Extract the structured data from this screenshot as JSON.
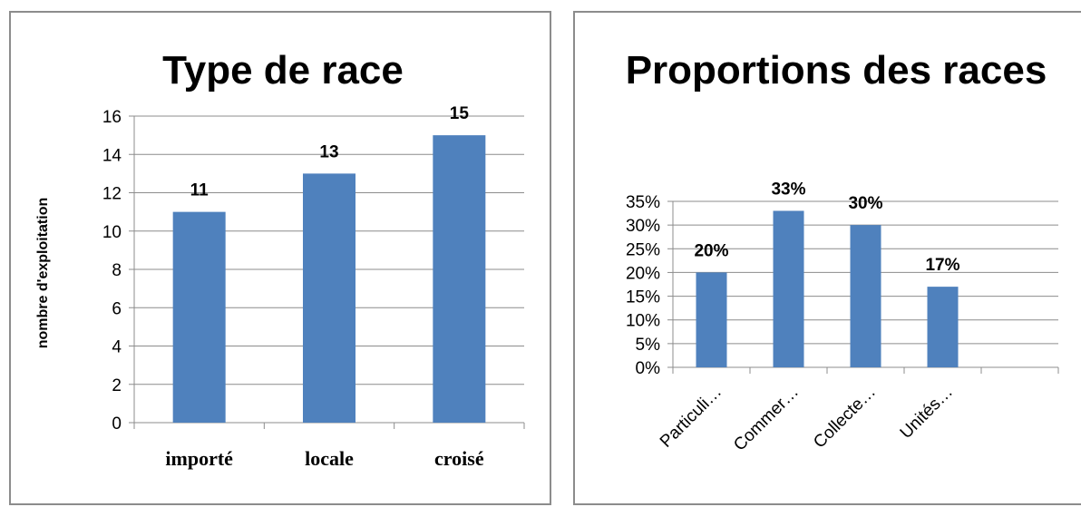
{
  "chart_data": [
    {
      "type": "bar",
      "title": "Type de race",
      "ylabel": "nombre d'exploitation",
      "xlabel": "",
      "categories": [
        "importé",
        "locale",
        "croisé"
      ],
      "values": [
        11,
        13,
        15
      ],
      "data_labels": [
        "11",
        "13",
        "15"
      ],
      "ylim": [
        0,
        16
      ],
      "yticks": [
        0,
        2,
        4,
        6,
        8,
        10,
        12,
        14,
        16
      ],
      "ytick_labels": [
        "0",
        "2",
        "4",
        "6",
        "8",
        "10",
        "12",
        "14",
        "16"
      ],
      "grid": true,
      "bar_color": "#4f81bd"
    },
    {
      "type": "bar",
      "title": "Proportions des races",
      "ylabel": "",
      "xlabel": "",
      "categories": [
        "Particuli…",
        "Commer…",
        "Collecte…",
        "Unités…"
      ],
      "values": [
        20,
        33,
        30,
        17
      ],
      "data_labels": [
        "20%",
        "33%",
        "30%",
        "17%"
      ],
      "ylim": [
        0,
        35
      ],
      "yticks": [
        0,
        5,
        10,
        15,
        20,
        25,
        30,
        35
      ],
      "ytick_labels": [
        "0%",
        "5%",
        "10%",
        "15%",
        "20%",
        "25%",
        "30%",
        "35%"
      ],
      "grid": true,
      "bar_color": "#4f81bd"
    }
  ]
}
